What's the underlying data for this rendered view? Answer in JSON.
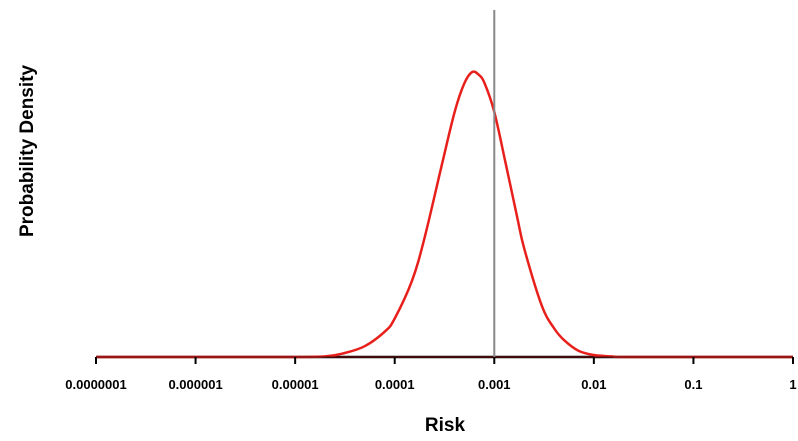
{
  "chart_data": {
    "type": "line",
    "xlabel": "Risk",
    "ylabel": "Probability Density",
    "x_scale": "log",
    "xlim": [
      1e-07,
      1
    ],
    "ylim": [
      0,
      1.15
    ],
    "x_ticks": [
      {
        "value": 1e-07,
        "label": "0.0000001"
      },
      {
        "value": 1e-06,
        "label": "0.000001"
      },
      {
        "value": 1e-05,
        "label": "0.00001"
      },
      {
        "value": 0.0001,
        "label": "0.0001"
      },
      {
        "value": 0.001,
        "label": "0.001"
      },
      {
        "value": 0.01,
        "label": "0.01"
      },
      {
        "value": 0.1,
        "label": "0.1"
      },
      {
        "value": 1,
        "label": "1"
      }
    ],
    "grid": false,
    "legend": "none",
    "series": [
      {
        "color": "#e8201c",
        "x": [
          1e-07,
          1e-06,
          1e-05,
          2e-05,
          3e-05,
          5e-05,
          8e-05,
          0.0001,
          0.00015,
          0.0002,
          0.0003,
          0.0004,
          0.0005,
          0.0006,
          0.0007,
          0.0008,
          0.001,
          0.0013,
          0.0017,
          0.002,
          0.003,
          0.004,
          0.005,
          0.007,
          0.01,
          0.015,
          0.02,
          0.1,
          1
        ],
        "y": [
          0,
          0,
          0,
          0.002,
          0.012,
          0.038,
          0.09,
          0.135,
          0.27,
          0.42,
          0.68,
          0.86,
          0.96,
          1.0,
          0.99,
          0.96,
          0.86,
          0.68,
          0.49,
          0.38,
          0.18,
          0.1,
          0.06,
          0.022,
          0.007,
          0.002,
          0,
          0,
          0
        ]
      }
    ],
    "reference_lines": [
      {
        "orientation": "vertical",
        "x": 0.001,
        "color": "#888888"
      }
    ],
    "axis_color": "#000000",
    "baseline_color": "#6b1010"
  }
}
